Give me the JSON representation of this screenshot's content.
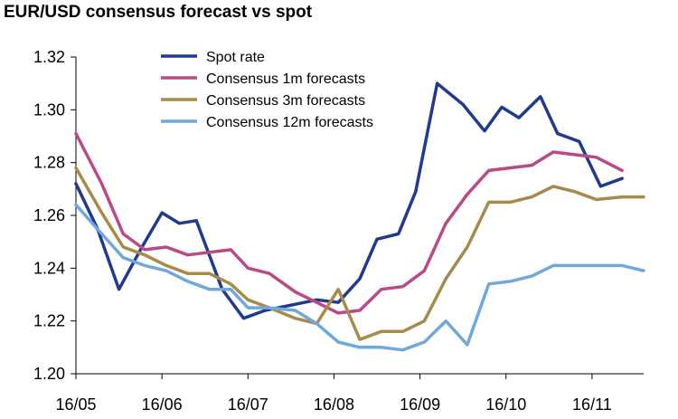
{
  "chart_data": {
    "type": "line",
    "title": "EUR/USD consensus forecast vs spot",
    "xlabel": "",
    "ylabel": "",
    "ylim": [
      1.2,
      1.32
    ],
    "yticks": [
      "1.20",
      "1.22",
      "1.24",
      "1.26",
      "1.28",
      "1.30",
      "1.32"
    ],
    "xticks": [
      "16/05",
      "16/06",
      "16/07",
      "16/08",
      "16/09",
      "16/10",
      "16/11"
    ],
    "grid": false,
    "legend_position": "top",
    "series": [
      {
        "name": "Spot rate",
        "color": "#1f3a8f",
        "points": [
          [
            0,
            1.272
          ],
          [
            0.25,
            1.255
          ],
          [
            0.5,
            1.232
          ],
          [
            0.75,
            1.247
          ],
          [
            1.0,
            1.261
          ],
          [
            1.2,
            1.257
          ],
          [
            1.4,
            1.258
          ],
          [
            1.7,
            1.232
          ],
          [
            1.95,
            1.221
          ],
          [
            2.2,
            1.224
          ],
          [
            2.5,
            1.226
          ],
          [
            2.8,
            1.228
          ],
          [
            3.05,
            1.227
          ],
          [
            3.3,
            1.236
          ],
          [
            3.5,
            1.251
          ],
          [
            3.75,
            1.253
          ],
          [
            3.95,
            1.269
          ],
          [
            4.2,
            1.31
          ],
          [
            4.5,
            1.302
          ],
          [
            4.75,
            1.292
          ],
          [
            4.95,
            1.301
          ],
          [
            5.15,
            1.297
          ],
          [
            5.4,
            1.305
          ],
          [
            5.6,
            1.291
          ],
          [
            5.85,
            1.288
          ],
          [
            6.1,
            1.271
          ],
          [
            6.35,
            1.274
          ]
        ]
      },
      {
        "name": "Consensus 1m forecasts",
        "color": "#b94a86",
        "points": [
          [
            0,
            1.291
          ],
          [
            0.3,
            1.272
          ],
          [
            0.55,
            1.253
          ],
          [
            0.8,
            1.247
          ],
          [
            1.05,
            1.248
          ],
          [
            1.3,
            1.245
          ],
          [
            1.55,
            1.246
          ],
          [
            1.8,
            1.247
          ],
          [
            2.0,
            1.24
          ],
          [
            2.25,
            1.238
          ],
          [
            2.55,
            1.231
          ],
          [
            2.8,
            1.227
          ],
          [
            3.05,
            1.223
          ],
          [
            3.3,
            1.224
          ],
          [
            3.55,
            1.232
          ],
          [
            3.8,
            1.233
          ],
          [
            4.05,
            1.239
          ],
          [
            4.3,
            1.257
          ],
          [
            4.55,
            1.268
          ],
          [
            4.8,
            1.277
          ],
          [
            5.05,
            1.278
          ],
          [
            5.3,
            1.279
          ],
          [
            5.55,
            1.284
          ],
          [
            5.8,
            1.283
          ],
          [
            6.05,
            1.282
          ],
          [
            6.35,
            1.277
          ]
        ]
      },
      {
        "name": "Consensus 3m forecasts",
        "color": "#a88a4b",
        "points": [
          [
            0,
            1.278
          ],
          [
            0.3,
            1.261
          ],
          [
            0.55,
            1.248
          ],
          [
            0.8,
            1.245
          ],
          [
            1.05,
            1.241
          ],
          [
            1.3,
            1.238
          ],
          [
            1.55,
            1.238
          ],
          [
            1.8,
            1.234
          ],
          [
            2.0,
            1.228
          ],
          [
            2.25,
            1.225
          ],
          [
            2.55,
            1.221
          ],
          [
            2.8,
            1.219
          ],
          [
            3.05,
            1.232
          ],
          [
            3.3,
            1.213
          ],
          [
            3.55,
            1.216
          ],
          [
            3.8,
            1.216
          ],
          [
            4.05,
            1.22
          ],
          [
            4.3,
            1.236
          ],
          [
            4.55,
            1.248
          ],
          [
            4.8,
            1.265
          ],
          [
            5.05,
            1.265
          ],
          [
            5.3,
            1.267
          ],
          [
            5.55,
            1.271
          ],
          [
            5.8,
            1.269
          ],
          [
            6.05,
            1.266
          ],
          [
            6.35,
            1.267
          ],
          [
            6.6,
            1.267
          ]
        ]
      },
      {
        "name": "Consensus 12m forecasts",
        "color": "#6fa8dc",
        "points": [
          [
            0,
            1.264
          ],
          [
            0.3,
            1.253
          ],
          [
            0.55,
            1.244
          ],
          [
            0.8,
            1.241
          ],
          [
            1.05,
            1.239
          ],
          [
            1.3,
            1.235
          ],
          [
            1.55,
            1.232
          ],
          [
            1.8,
            1.232
          ],
          [
            2.0,
            1.225
          ],
          [
            2.25,
            1.225
          ],
          [
            2.55,
            1.224
          ],
          [
            2.8,
            1.219
          ],
          [
            3.05,
            1.212
          ],
          [
            3.3,
            1.21
          ],
          [
            3.55,
            1.21
          ],
          [
            3.8,
            1.209
          ],
          [
            4.05,
            1.212
          ],
          [
            4.3,
            1.22
          ],
          [
            4.55,
            1.211
          ],
          [
            4.8,
            1.234
          ],
          [
            5.05,
            1.235
          ],
          [
            5.3,
            1.237
          ],
          [
            5.55,
            1.241
          ],
          [
            5.8,
            1.241
          ],
          [
            6.05,
            1.241
          ],
          [
            6.35,
            1.241
          ],
          [
            6.6,
            1.239
          ]
        ]
      }
    ]
  }
}
